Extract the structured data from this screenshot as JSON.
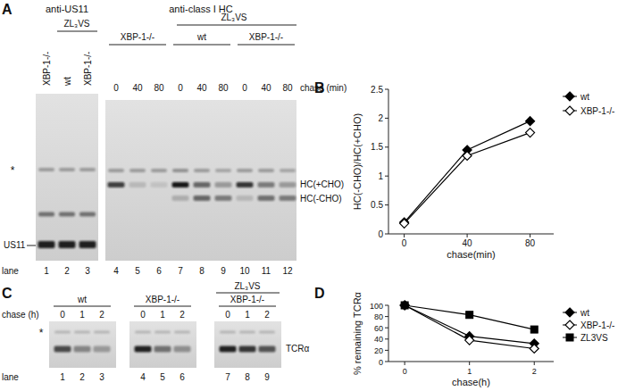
{
  "panels": {
    "A": {
      "letter": "A",
      "lane_label": "lane",
      "blot_us11": {
        "antibody": "anti-US11",
        "lane_headers": [
          "XBP-1-/-",
          "wt",
          "XBP-1-/-"
        ],
        "group": "ZL₃VS",
        "lanes": [
          "1",
          "2",
          "3"
        ],
        "band": "US11",
        "asterisk": "*"
      },
      "blot_hc": {
        "antibody": "anti-class I HC",
        "group_top": "ZL₃VS",
        "group_labels": [
          "XBP-1-/-",
          "wt",
          "XBP-1-/-"
        ],
        "chase": [
          "0",
          "40",
          "80",
          "0",
          "40",
          "80",
          "0",
          "40",
          "80"
        ],
        "chase_label": "chase (min)",
        "lanes": [
          "4",
          "5",
          "6",
          "7",
          "8",
          "9",
          "10",
          "11",
          "12"
        ],
        "bands": [
          "HC(+CHO)",
          "HC(-CHO)"
        ]
      }
    },
    "C": {
      "letter": "C",
      "lane_label": "lane",
      "chase_label": "chase (h)",
      "group_top": "ZL₃VS",
      "group_labels": [
        "wt",
        "XBP-1-/-",
        "XBP-1-/-"
      ],
      "chase": [
        "0",
        "1",
        "2",
        "0",
        "1",
        "2",
        "0",
        "1",
        "2"
      ],
      "lanes": [
        "1",
        "2",
        "3",
        "4",
        "5",
        "6",
        "7",
        "8",
        "9"
      ],
      "band": "TCRα",
      "asterisk": "*"
    }
  },
  "chart_data": [
    {
      "type": "line",
      "title": "B",
      "x_label": "chase(min)",
      "y_label": "HC(-CHO)/HC(+CHO)",
      "x": [
        0,
        40,
        80
      ],
      "xlim": [
        -10,
        95
      ],
      "xticks": [
        0,
        40,
        80
      ],
      "ylim": [
        0,
        2.5
      ],
      "yticks": [
        0,
        0.5,
        1,
        1.5,
        2,
        2.5
      ],
      "legend": "right",
      "series": [
        {
          "name": "wt",
          "color": "#000000",
          "marker": "diamond",
          "values": [
            0.2,
            1.45,
            1.95
          ]
        },
        {
          "name": "XBP-1-/-",
          "color": "#000000",
          "marker": "diamond-open",
          "values": [
            0.18,
            1.35,
            1.75
          ]
        }
      ]
    },
    {
      "type": "line",
      "title": "D",
      "x_label": "chase(h)",
      "y_label": "% remaining TCRα",
      "x": [
        0,
        1,
        2
      ],
      "xlim": [
        -0.25,
        2.3
      ],
      "xticks": [
        0,
        1,
        2
      ],
      "ylim": [
        0,
        100
      ],
      "yticks": [
        0,
        20,
        40,
        60,
        80,
        100
      ],
      "legend": "right",
      "series": [
        {
          "name": "wt",
          "color": "#000000",
          "marker": "diamond",
          "values": [
            100,
            45,
            32
          ]
        },
        {
          "name": "XBP-1-/-",
          "color": "#000000",
          "marker": "diamond-open",
          "values": [
            100,
            38,
            23
          ]
        },
        {
          "name": "ZL3VS",
          "color": "#000000",
          "marker": "square",
          "values": [
            100,
            83,
            57
          ]
        }
      ]
    }
  ]
}
